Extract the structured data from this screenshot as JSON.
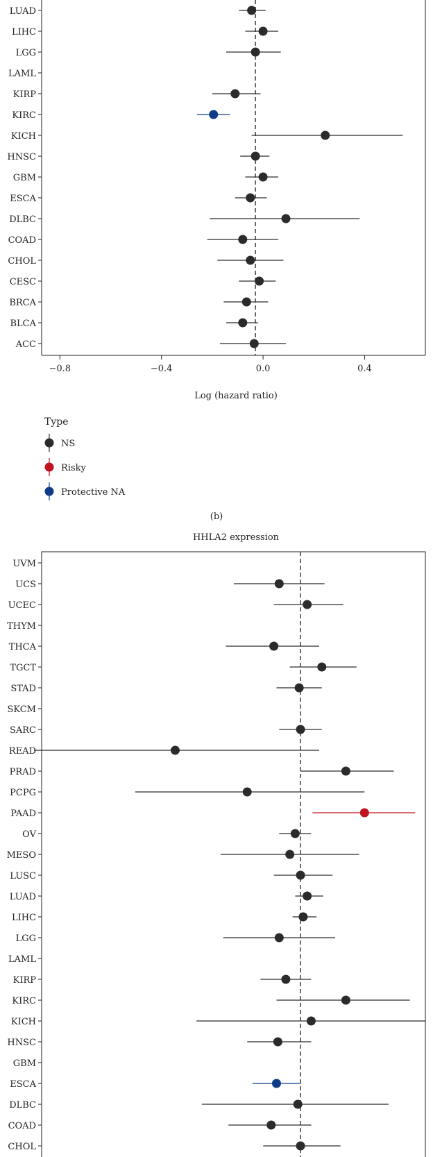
{
  "chart_data": [
    {
      "type": "scatter",
      "subtype": "forest-plot",
      "title": "",
      "xlabel": "Log (hazard ratio)",
      "xlim": [
        -0.85,
        0.62
      ],
      "reference_line": -0.03,
      "x_ticks": [
        -0.8,
        -0.4,
        0.0,
        0.4
      ],
      "x_tick_labels": [
        "−0.8",
        "−0.4",
        "0.0",
        "0.4"
      ],
      "categories": [
        "ACC",
        "BLCA",
        "BRCA",
        "CESC",
        "CHOL",
        "COAD",
        "DLBC",
        "ESCA",
        "GBM",
        "HNSC",
        "KICH",
        "KIRC",
        "KIRP",
        "LAML",
        "LGG",
        "LIHC",
        "LUAD"
      ],
      "points": [
        {
          "name": "ACC",
          "est": -0.035,
          "lo": -0.17,
          "hi": 0.09,
          "type": "NS"
        },
        {
          "name": "BLCA",
          "est": -0.08,
          "lo": -0.145,
          "hi": -0.02,
          "type": "NS"
        },
        {
          "name": "BRCA",
          "est": -0.065,
          "lo": -0.155,
          "hi": 0.02,
          "type": "NS"
        },
        {
          "name": "CESC",
          "est": -0.015,
          "lo": -0.095,
          "hi": 0.05,
          "type": "NS"
        },
        {
          "name": "CHOL",
          "est": -0.05,
          "lo": -0.18,
          "hi": 0.08,
          "type": "NS"
        },
        {
          "name": "COAD",
          "est": -0.08,
          "lo": -0.22,
          "hi": 0.06,
          "type": "NS"
        },
        {
          "name": "DLBC",
          "est": 0.09,
          "lo": -0.21,
          "hi": 0.38,
          "type": "NS"
        },
        {
          "name": "ESCA",
          "est": -0.05,
          "lo": -0.11,
          "hi": 0.015,
          "type": "NS"
        },
        {
          "name": "GBM",
          "est": 0.0,
          "lo": -0.07,
          "hi": 0.06,
          "type": "NS"
        },
        {
          "name": "HNSC",
          "est": -0.03,
          "lo": -0.09,
          "hi": 0.025,
          "type": "NS"
        },
        {
          "name": "KICH",
          "est": 0.245,
          "lo": -0.045,
          "hi": 0.55,
          "type": "NS"
        },
        {
          "name": "KIRC",
          "est": -0.195,
          "lo": -0.26,
          "hi": -0.13,
          "type": "Protective"
        },
        {
          "name": "KIRP",
          "est": -0.11,
          "lo": -0.2,
          "hi": -0.01,
          "type": "NS"
        },
        {
          "name": "LAML",
          "est": null,
          "lo": null,
          "hi": null,
          "type": "NA"
        },
        {
          "name": "LGG",
          "est": -0.03,
          "lo": -0.145,
          "hi": 0.07,
          "type": "NS"
        },
        {
          "name": "LIHC",
          "est": 0.0,
          "lo": -0.07,
          "hi": 0.06,
          "type": "NS"
        },
        {
          "name": "LUAD",
          "est": -0.045,
          "lo": -0.095,
          "hi": 0.01,
          "type": "NS"
        }
      ]
    },
    {
      "type": "scatter",
      "subtype": "forest-plot",
      "title": "HHLA2 expression",
      "xlim": [
        -0.95,
        0.45
      ],
      "reference_line": 0.0,
      "categories": [
        "CHOL",
        "COAD",
        "DLBC",
        "ESCA",
        "GBM",
        "HNSC",
        "KICH",
        "KIRC",
        "KIRP",
        "LAML",
        "LGG",
        "LIHC",
        "LUAD",
        "LUSC",
        "MESO",
        "OV",
        "PAAD",
        "PCPG",
        "PRAD",
        "READ",
        "SARC",
        "SKCM",
        "STAD",
        "TGCT",
        "THCA",
        "THYM",
        "UCEC",
        "UCS",
        "UVM"
      ],
      "points": [
        {
          "name": "CHOL",
          "est": 0.0,
          "lo": -0.14,
          "hi": 0.15,
          "type": "NS"
        },
        {
          "name": "COAD",
          "est": -0.11,
          "lo": -0.27,
          "hi": 0.04,
          "type": "NS"
        },
        {
          "name": "DLBC",
          "est": -0.01,
          "lo": -0.37,
          "hi": 0.33,
          "type": "NS"
        },
        {
          "name": "ESCA",
          "est": -0.09,
          "lo": -0.18,
          "hi": 0.0,
          "type": "Protective"
        },
        {
          "name": "GBM",
          "est": null,
          "lo": null,
          "hi": null,
          "type": "NA"
        },
        {
          "name": "HNSC",
          "est": -0.085,
          "lo": -0.2,
          "hi": 0.04,
          "type": "NS"
        },
        {
          "name": "KICH",
          "est": 0.04,
          "lo": -0.39,
          "hi": 0.47,
          "type": "NS"
        },
        {
          "name": "KIRC",
          "est": 0.17,
          "lo": -0.09,
          "hi": 0.41,
          "type": "NS"
        },
        {
          "name": "KIRP",
          "est": -0.055,
          "lo": -0.15,
          "hi": 0.04,
          "type": "NS"
        },
        {
          "name": "LAML",
          "est": null,
          "lo": null,
          "hi": null,
          "type": "NA"
        },
        {
          "name": "LGG",
          "est": -0.08,
          "lo": -0.29,
          "hi": 0.13,
          "type": "NS"
        },
        {
          "name": "LIHC",
          "est": 0.01,
          "lo": -0.03,
          "hi": 0.06,
          "type": "NS"
        },
        {
          "name": "LUAD",
          "est": 0.025,
          "lo": -0.02,
          "hi": 0.085,
          "type": "NS"
        },
        {
          "name": "LUSC",
          "est": 0.0,
          "lo": -0.1,
          "hi": 0.12,
          "type": "NS"
        },
        {
          "name": "MESO",
          "est": -0.04,
          "lo": -0.3,
          "hi": 0.22,
          "type": "NS"
        },
        {
          "name": "OV",
          "est": -0.02,
          "lo": -0.08,
          "hi": 0.04,
          "type": "NS"
        },
        {
          "name": "PAAD",
          "est": 0.24,
          "lo": 0.045,
          "hi": 0.43,
          "type": "Risky"
        },
        {
          "name": "PCPG",
          "est": -0.2,
          "lo": -0.62,
          "hi": 0.24,
          "type": "NS"
        },
        {
          "name": "PRAD",
          "est": 0.17,
          "lo": 0.0,
          "hi": 0.35,
          "type": "NS"
        },
        {
          "name": "READ",
          "est": -0.47,
          "lo": -1.0,
          "hi": 0.07,
          "type": "NS"
        },
        {
          "name": "SARC",
          "est": 0.0,
          "lo": -0.08,
          "hi": 0.08,
          "type": "NS"
        },
        {
          "name": "SKCM",
          "est": null,
          "lo": null,
          "hi": null,
          "type": "NA"
        },
        {
          "name": "STAD",
          "est": -0.005,
          "lo": -0.09,
          "hi": 0.08,
          "type": "NS"
        },
        {
          "name": "TGCT",
          "est": 0.08,
          "lo": -0.04,
          "hi": 0.21,
          "type": "NS"
        },
        {
          "name": "THCA",
          "est": -0.1,
          "lo": -0.28,
          "hi": 0.07,
          "type": "NS"
        },
        {
          "name": "THYM",
          "est": null,
          "lo": null,
          "hi": null,
          "type": "NA"
        },
        {
          "name": "UCEC",
          "est": 0.025,
          "lo": -0.1,
          "hi": 0.16,
          "type": "NS"
        },
        {
          "name": "UCS",
          "est": -0.08,
          "lo": -0.25,
          "hi": 0.09,
          "type": "NS"
        },
        {
          "name": "UVM",
          "est": null,
          "lo": null,
          "hi": null,
          "type": "NA"
        }
      ]
    }
  ],
  "legend": {
    "title": "Type",
    "items": [
      {
        "label": "NS",
        "color": "#2b2b2b"
      },
      {
        "label": "Risky",
        "color": "#c1121f"
      },
      {
        "label": "Protective NA",
        "color": "#0d3b8a"
      }
    ]
  },
  "panel_label": "(b)",
  "colors": {
    "NS": "#2b2b2b",
    "Risky": "#c1121f",
    "Protective": "#0d3b8a"
  }
}
